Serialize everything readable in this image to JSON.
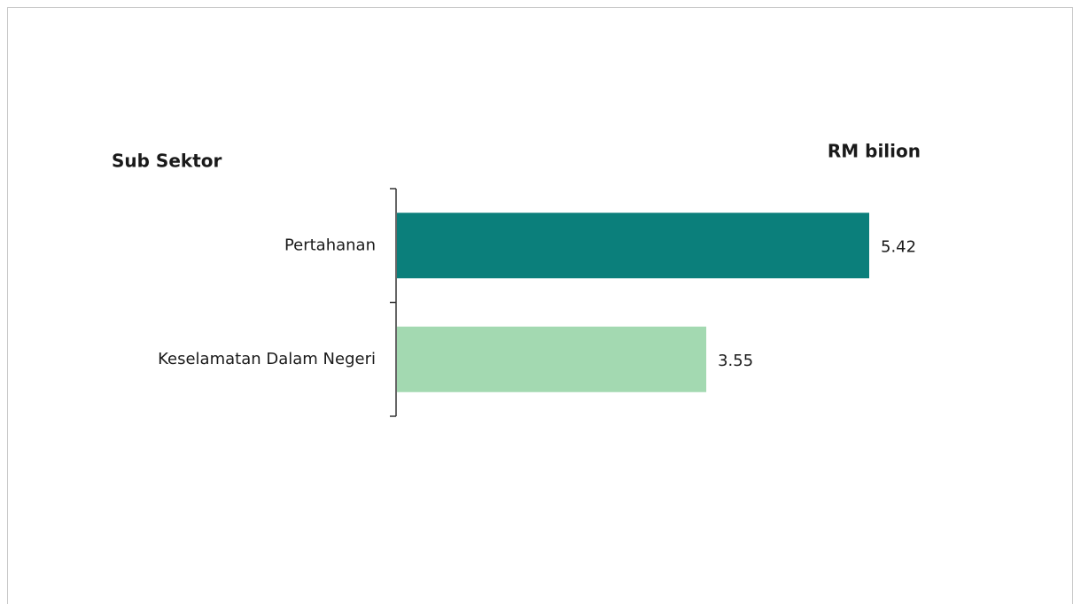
{
  "chart_data": {
    "type": "bar",
    "orientation": "horizontal",
    "category_axis_label": "Sub Sektor",
    "value_axis_label": "RM bilion",
    "categories": [
      "Pertahanan",
      "Keselamatan Dalam Negeri"
    ],
    "values": [
      5.42,
      3.55
    ],
    "colors": [
      "#0b7f7b",
      "#a3d9b1"
    ]
  }
}
